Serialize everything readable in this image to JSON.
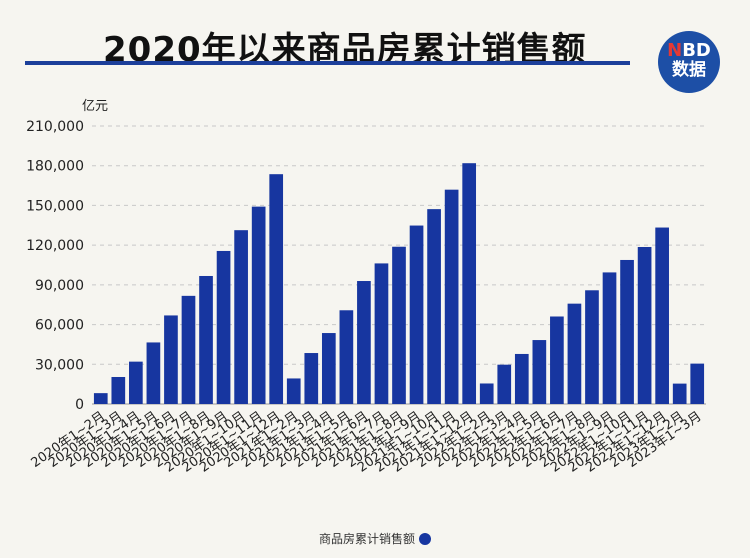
{
  "title": "2020年以来商品房累计销售额",
  "logo": {
    "line1_accent": "N",
    "line1_rest": "BD",
    "line2": "数据"
  },
  "unit": "亿元",
  "legend_label": "商品房累计销售额",
  "colors": {
    "bar": "#1736a0",
    "grid": "#c8c8c8",
    "accent": "#1c3f9a"
  },
  "chart_data": {
    "type": "bar",
    "ylabel": "亿元",
    "ylim": [
      0,
      210000
    ],
    "yticks": [
      "0",
      "30,000",
      "60,000",
      "90,000",
      "120,000",
      "150,000",
      "180,000",
      "210,000"
    ],
    "grid": true,
    "legend": "bottom-center",
    "categories": [
      "2020年1~2月",
      "2020年1~3月",
      "2020年1~4月",
      "2020年1~5月",
      "2020年1~6月",
      "2020年1~7月",
      "2020年1~8月",
      "2020年1~9月",
      "2020年1~10月",
      "2020年1~11月",
      "2020年1~12月",
      "2021年1~2月",
      "2021年1~3月",
      "2021年1~4月",
      "2021年1~5月",
      "2021年1~6月",
      "2021年1~7月",
      "2021年1~8月",
      "2021年1~9月",
      "2021年1~10月",
      "2021年1~11月",
      "2021年1~12月",
      "2022年1~2月",
      "2022年1~3月",
      "2022年1~4月",
      "2022年1~5月",
      "2022年1~6月",
      "2022年1~7月",
      "2022年1~8月",
      "2022年1~9月",
      "2022年1~10月",
      "2022年1~11月",
      "2022年1~12月",
      "2023年1~2月",
      "2023年1~3月"
    ],
    "series": [
      {
        "name": "商品房累计销售额",
        "values": [
          8200,
          20400,
          32000,
          46500,
          66900,
          81700,
          96700,
          115600,
          131300,
          149100,
          173600,
          19300,
          38500,
          53600,
          70800,
          92900,
          106200,
          118800,
          134800,
          147200,
          161900,
          181900,
          15500,
          29700,
          37800,
          48300,
          66100,
          75800,
          85900,
          99400,
          108800,
          118600,
          133300,
          15400,
          30500
        ]
      }
    ]
  }
}
